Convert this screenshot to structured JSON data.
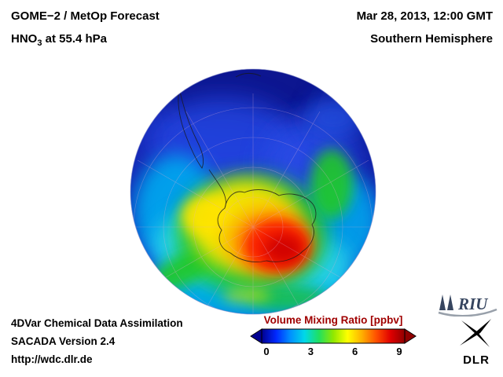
{
  "header": {
    "product": "GOME−2 / MetOp Forecast",
    "species_prefix": "HNO",
    "species_sub": "3",
    "species_suffix": " at 55.4 hPa",
    "datetime": "Mar 28, 2013, 12:00 GMT",
    "hemisphere": "Southern Hemisphere"
  },
  "map": {
    "projection": "orthographic",
    "region": "Southern Hemisphere",
    "field": "HNO3 volume mixing ratio at 55.4 hPa",
    "field_pattern": "maximum (red) over Antarctica, low values (blue) toward mid-latitudes"
  },
  "colorbar": {
    "title": "Volume Mixing Ratio [ppbv]",
    "title_color": "#a00000",
    "ticks": [
      "0",
      "3",
      "6",
      "9"
    ],
    "range_min": 0,
    "range_max": 9,
    "colors": [
      "#000090",
      "#0028ff",
      "#0090ff",
      "#00d8e8",
      "#20e060",
      "#90e800",
      "#ffff00",
      "#ffb000",
      "#ff5000",
      "#e00000",
      "#900000"
    ]
  },
  "footer": {
    "assimilation": "4DVar Chemical Data Assimilation",
    "version": "SACADA Version 2.4",
    "url": "http://wdc.dlr.de"
  },
  "logos": {
    "riu": "RIU",
    "riu_color": "#36455f",
    "dlr": "DLR"
  }
}
